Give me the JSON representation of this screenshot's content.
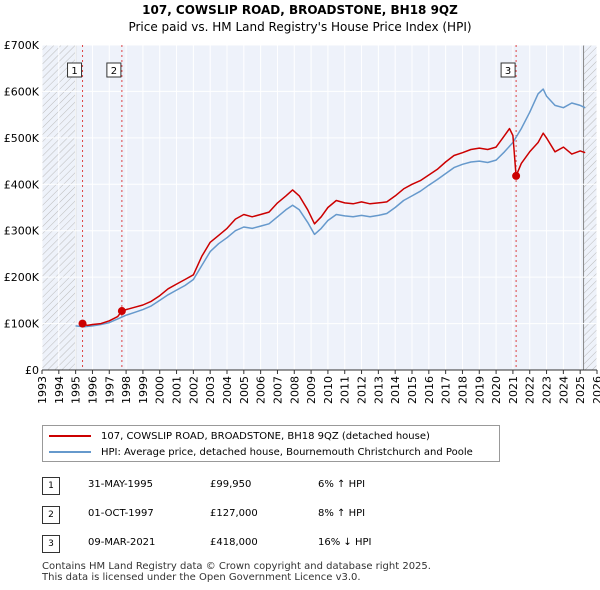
{
  "chart_data": {
    "type": "line",
    "title": "107, COWSLIP ROAD, BROADSTONE, BH18 9QZ",
    "subtitle": "Price paid vs. HM Land Registry's House Price Index (HPI)",
    "xlabel": "",
    "ylabel": "",
    "xlim": [
      1993,
      2026
    ],
    "ylim": [
      0,
      700000
    ],
    "x_ticks": [
      "1993",
      "1994",
      "1995",
      "1996",
      "1997",
      "1998",
      "1999",
      "2000",
      "2001",
      "2002",
      "2003",
      "2004",
      "2005",
      "2006",
      "2007",
      "2008",
      "2009",
      "2010",
      "2011",
      "2012",
      "2013",
      "2014",
      "2015",
      "2016",
      "2017",
      "2018",
      "2019",
      "2020",
      "2021",
      "2022",
      "2023",
      "2024",
      "2025",
      "2026"
    ],
    "y_ticks": [
      {
        "value": 0,
        "label": "£0"
      },
      {
        "value": 100000,
        "label": "£100K"
      },
      {
        "value": 200000,
        "label": "£200K"
      },
      {
        "value": 300000,
        "label": "£300K"
      },
      {
        "value": 400000,
        "label": "£400K"
      },
      {
        "value": 500000,
        "label": "£500K"
      },
      {
        "value": 600000,
        "label": "£600K"
      },
      {
        "value": 700000,
        "label": "£700K"
      }
    ],
    "hatched_before": 1995.0,
    "hatched_after": 2025.2,
    "series": [
      {
        "name": "107, COWSLIP ROAD, BROADSTONE, BH18 9QZ (detached house)",
        "color": "#cc0000",
        "points": [
          [
            1995.41,
            99950
          ],
          [
            1995.7,
            96000
          ],
          [
            1996.0,
            98000
          ],
          [
            1996.5,
            100000
          ],
          [
            1997.0,
            106000
          ],
          [
            1997.5,
            115000
          ],
          [
            1997.75,
            127000
          ],
          [
            1998.0,
            130000
          ],
          [
            1998.5,
            135000
          ],
          [
            1999.0,
            140000
          ],
          [
            1999.5,
            148000
          ],
          [
            2000.0,
            160000
          ],
          [
            2000.5,
            175000
          ],
          [
            2001.0,
            185000
          ],
          [
            2001.5,
            195000
          ],
          [
            2002.0,
            205000
          ],
          [
            2002.5,
            245000
          ],
          [
            2003.0,
            275000
          ],
          [
            2003.5,
            290000
          ],
          [
            2004.0,
            305000
          ],
          [
            2004.5,
            325000
          ],
          [
            2005.0,
            335000
          ],
          [
            2005.5,
            330000
          ],
          [
            2006.0,
            335000
          ],
          [
            2006.5,
            340000
          ],
          [
            2007.0,
            360000
          ],
          [
            2007.5,
            375000
          ],
          [
            2007.9,
            388000
          ],
          [
            2008.3,
            375000
          ],
          [
            2008.8,
            345000
          ],
          [
            2009.2,
            315000
          ],
          [
            2009.6,
            330000
          ],
          [
            2010.0,
            350000
          ],
          [
            2010.5,
            365000
          ],
          [
            2011.0,
            360000
          ],
          [
            2011.5,
            358000
          ],
          [
            2012.0,
            362000
          ],
          [
            2012.5,
            358000
          ],
          [
            2013.0,
            360000
          ],
          [
            2013.5,
            362000
          ],
          [
            2014.0,
            375000
          ],
          [
            2014.5,
            390000
          ],
          [
            2015.0,
            400000
          ],
          [
            2015.5,
            408000
          ],
          [
            2016.0,
            420000
          ],
          [
            2016.5,
            432000
          ],
          [
            2017.0,
            448000
          ],
          [
            2017.5,
            462000
          ],
          [
            2018.0,
            468000
          ],
          [
            2018.5,
            475000
          ],
          [
            2019.0,
            478000
          ],
          [
            2019.5,
            475000
          ],
          [
            2020.0,
            480000
          ],
          [
            2020.4,
            500000
          ],
          [
            2020.8,
            520000
          ],
          [
            2021.0,
            505000
          ],
          [
            2021.19,
            418000
          ],
          [
            2021.5,
            445000
          ],
          [
            2022.0,
            470000
          ],
          [
            2022.5,
            490000
          ],
          [
            2022.8,
            510000
          ],
          [
            2023.0,
            500000
          ],
          [
            2023.5,
            470000
          ],
          [
            2024.0,
            480000
          ],
          [
            2024.5,
            465000
          ],
          [
            2025.0,
            472000
          ],
          [
            2025.3,
            468000
          ]
        ]
      },
      {
        "name": "HPI: Average price, detached house, Bournemouth Christchurch and Poole",
        "color": "#6699cc",
        "points": [
          [
            1995.0,
            95000
          ],
          [
            1995.5,
            93000
          ],
          [
            1996.0,
            95000
          ],
          [
            1996.5,
            98000
          ],
          [
            1997.0,
            102000
          ],
          [
            1997.5,
            110000
          ],
          [
            1998.0,
            118000
          ],
          [
            1998.5,
            124000
          ],
          [
            1999.0,
            130000
          ],
          [
            1999.5,
            138000
          ],
          [
            2000.0,
            150000
          ],
          [
            2000.5,
            162000
          ],
          [
            2001.0,
            172000
          ],
          [
            2001.5,
            182000
          ],
          [
            2002.0,
            195000
          ],
          [
            2002.5,
            225000
          ],
          [
            2003.0,
            255000
          ],
          [
            2003.5,
            272000
          ],
          [
            2004.0,
            285000
          ],
          [
            2004.5,
            300000
          ],
          [
            2005.0,
            308000
          ],
          [
            2005.5,
            305000
          ],
          [
            2006.0,
            310000
          ],
          [
            2006.5,
            315000
          ],
          [
            2007.0,
            330000
          ],
          [
            2007.5,
            345000
          ],
          [
            2007.9,
            355000
          ],
          [
            2008.3,
            345000
          ],
          [
            2008.8,
            318000
          ],
          [
            2009.2,
            292000
          ],
          [
            2009.6,
            305000
          ],
          [
            2010.0,
            322000
          ],
          [
            2010.5,
            335000
          ],
          [
            2011.0,
            332000
          ],
          [
            2011.5,
            330000
          ],
          [
            2012.0,
            333000
          ],
          [
            2012.5,
            330000
          ],
          [
            2013.0,
            333000
          ],
          [
            2013.5,
            337000
          ],
          [
            2014.0,
            350000
          ],
          [
            2014.5,
            365000
          ],
          [
            2015.0,
            375000
          ],
          [
            2015.5,
            385000
          ],
          [
            2016.0,
            398000
          ],
          [
            2016.5,
            410000
          ],
          [
            2017.0,
            423000
          ],
          [
            2017.5,
            436000
          ],
          [
            2018.0,
            443000
          ],
          [
            2018.5,
            448000
          ],
          [
            2019.0,
            450000
          ],
          [
            2019.5,
            447000
          ],
          [
            2020.0,
            452000
          ],
          [
            2020.5,
            470000
          ],
          [
            2021.0,
            490000
          ],
          [
            2021.5,
            520000
          ],
          [
            2022.0,
            555000
          ],
          [
            2022.5,
            595000
          ],
          [
            2022.8,
            605000
          ],
          [
            2023.0,
            590000
          ],
          [
            2023.5,
            570000
          ],
          [
            2024.0,
            565000
          ],
          [
            2024.5,
            575000
          ],
          [
            2025.0,
            570000
          ],
          [
            2025.3,
            565000
          ]
        ]
      }
    ],
    "sales": [
      {
        "num": "1",
        "year": 1995.41,
        "price": 99950,
        "date": "31-MAY-1995",
        "price_label": "£99,950",
        "hpi": "6% ↑ HPI"
      },
      {
        "num": "2",
        "year": 1997.75,
        "price": 127000,
        "date": "01-OCT-1997",
        "price_label": "£127,000",
        "hpi": "8% ↑ HPI"
      },
      {
        "num": "3",
        "year": 2021.19,
        "price": 418000,
        "date": "09-MAR-2021",
        "price_label": "£418,000",
        "hpi": "16% ↓ HPI"
      }
    ]
  },
  "footer": {
    "line1": "Contains HM Land Registry data © Crown copyright and database right 2025.",
    "line2": "This data is licensed under the Open Government Licence v3.0."
  }
}
